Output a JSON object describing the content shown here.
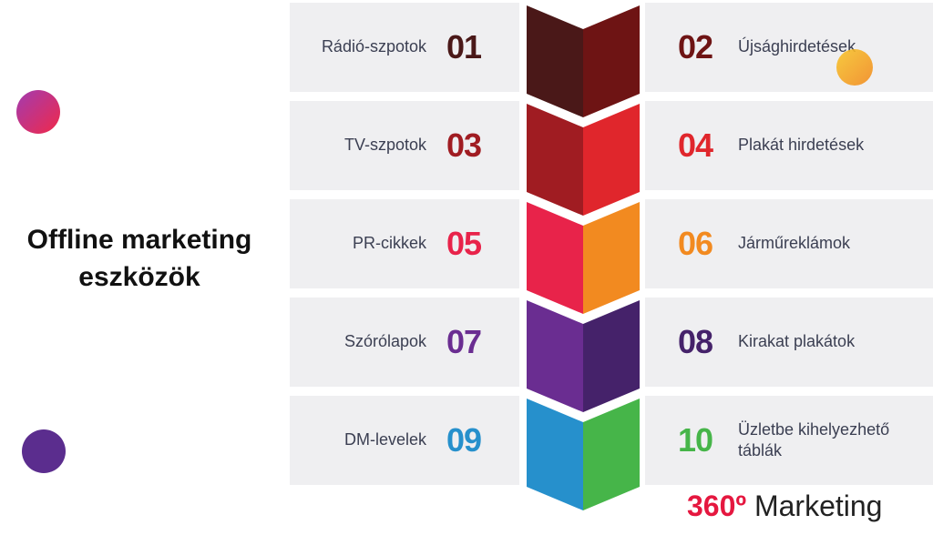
{
  "title": "Offline marketing eszközök",
  "items": [
    {
      "number": "01",
      "label": "Rádió-szpotok",
      "color": "#4a1818"
    },
    {
      "number": "02",
      "label": "Újsághirdetések",
      "color": "#6e1414"
    },
    {
      "number": "03",
      "label": "TV-szpotok",
      "color": "#a01c22"
    },
    {
      "number": "04",
      "label": "Plakát hirdetések",
      "color": "#e0262c"
    },
    {
      "number": "05",
      "label": "PR-cikkek",
      "color": "#e8234a"
    },
    {
      "number": "06",
      "label": "Járműreklámok",
      "color": "#f28a20"
    },
    {
      "number": "07",
      "label": "Szórólapok",
      "color": "#6a2d91"
    },
    {
      "number": "08",
      "label": "Kirakat plakátok",
      "color": "#45226a"
    },
    {
      "number": "09",
      "label": "DM-levelek",
      "color": "#2690cc"
    },
    {
      "number": "10",
      "label": "Üzletbe kihelyezhető táblák",
      "color": "#46b549"
    }
  ],
  "brand": {
    "accent": "360º",
    "name": "Marketing"
  }
}
